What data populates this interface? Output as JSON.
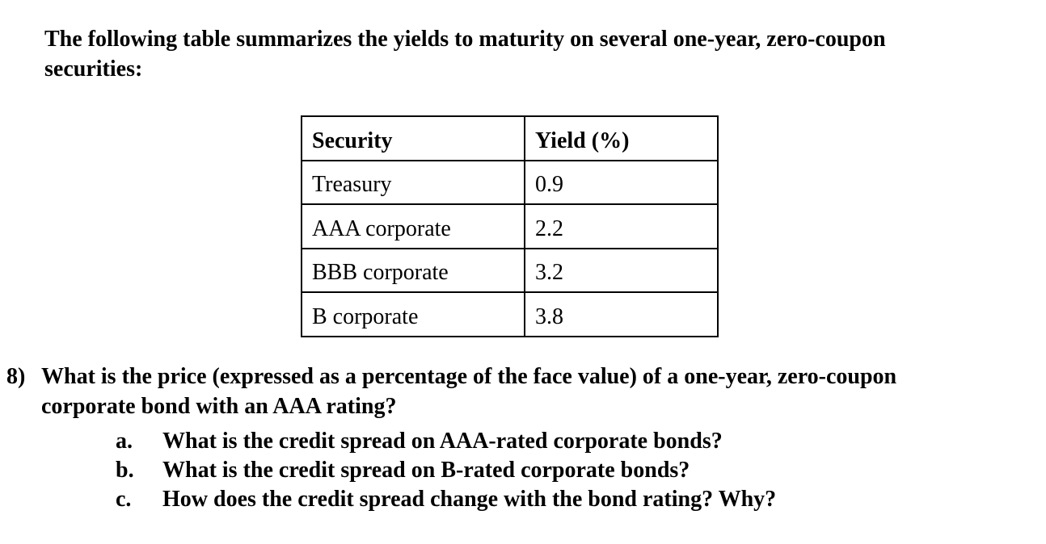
{
  "colors": {
    "text": "#000000",
    "background": "#ffffff",
    "table_border": "#000000"
  },
  "intro": {
    "lines": [
      "The following table summarizes the yields to maturity on several one-year, zero-coupon",
      "securities:"
    ]
  },
  "table": {
    "headers": [
      "Security",
      "Yield (%)"
    ],
    "rows": [
      {
        "security": "Treasury",
        "yield": "0.9"
      },
      {
        "security": "AAA corporate",
        "yield": "2.2"
      },
      {
        "security": "BBB corporate",
        "yield": "3.2"
      },
      {
        "security": "B corporate",
        "yield": "3.8"
      }
    ]
  },
  "question": {
    "number": "8)",
    "lines": [
      "What is the price (expressed as a percentage of the face value) of a one-year, zero-coupon",
      "corporate bond with an AAA rating?"
    ],
    "subitems": [
      {
        "label": "a.",
        "text": "What is the credit spread on AAA-rated corporate bonds?"
      },
      {
        "label": "b.",
        "text": "What is the credit spread on B-rated corporate bonds?"
      },
      {
        "label": "c.",
        "text": "How does the credit spread change with the bond rating? Why?"
      }
    ]
  }
}
